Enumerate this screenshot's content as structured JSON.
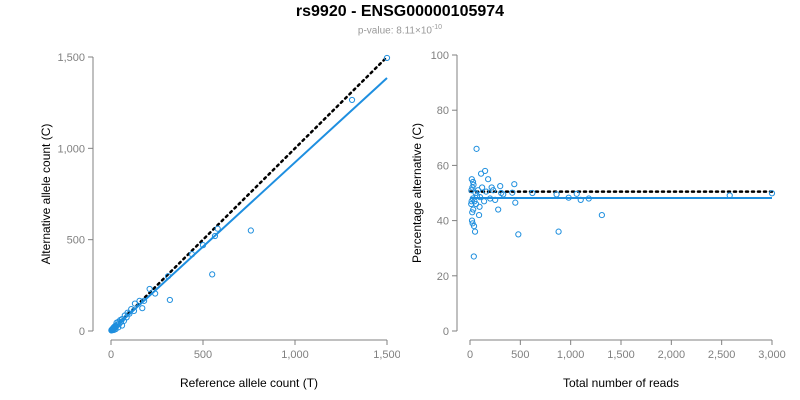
{
  "title": "rs9920 - ENSG00000105974",
  "subtitle": {
    "prefix": "p-value: 8.11×10",
    "exponent": "-10"
  },
  "colors": {
    "points": "#1f8fde",
    "fit_line": "#1e8fe0",
    "reference_line": "#000000",
    "axis": "#808080"
  },
  "chart_data": [
    {
      "type": "scatter",
      "xlabel": "Reference allele count (T)",
      "ylabel": "Alternative allele count (C)",
      "xlim": [
        0,
        1500
      ],
      "ylim": [
        0,
        1500
      ],
      "xticks": [
        0,
        500,
        1000,
        1500
      ],
      "yticks": [
        0,
        500,
        1000,
        1500
      ],
      "xtick_labels": [
        "0",
        "500",
        "1,000",
        "1,500"
      ],
      "ytick_labels": [
        "0",
        "500",
        "1,000",
        "1,500"
      ],
      "points": [
        [
          1500,
          1495
        ],
        [
          1310,
          1265
        ],
        [
          760,
          550
        ],
        [
          580,
          560
        ],
        [
          565,
          520
        ],
        [
          550,
          310
        ],
        [
          500,
          470
        ],
        [
          440,
          420
        ],
        [
          320,
          170
        ],
        [
          310,
          300
        ],
        [
          240,
          205
        ],
        [
          210,
          230
        ],
        [
          180,
          165
        ],
        [
          170,
          125
        ],
        [
          155,
          165
        ],
        [
          130,
          150
        ],
        [
          125,
          110
        ],
        [
          110,
          120
        ],
        [
          100,
          95
        ],
        [
          90,
          100
        ],
        [
          85,
          75
        ],
        [
          75,
          85
        ],
        [
          70,
          55
        ],
        [
          60,
          65
        ],
        [
          55,
          50
        ],
        [
          50,
          60
        ],
        [
          45,
          40
        ],
        [
          40,
          50
        ],
        [
          35,
          35
        ],
        [
          30,
          45
        ],
        [
          28,
          25
        ],
        [
          25,
          30
        ],
        [
          22,
          20
        ],
        [
          20,
          25
        ],
        [
          18,
          15
        ],
        [
          15,
          20
        ],
        [
          12,
          12
        ],
        [
          10,
          14
        ],
        [
          8,
          10
        ],
        [
          6,
          8
        ],
        [
          5,
          5
        ],
        [
          4,
          7
        ],
        [
          3,
          3
        ],
        [
          2,
          4
        ],
        [
          25,
          10
        ],
        [
          40,
          20
        ],
        [
          60,
          30
        ],
        [
          15,
          5
        ]
      ],
      "reference_line": [
        [
          0,
          0
        ],
        [
          1500,
          1500
        ]
      ],
      "fit_line": [
        [
          0,
          0
        ],
        [
          1500,
          1385
        ]
      ]
    },
    {
      "type": "scatter",
      "xlabel": "Total number of reads",
      "ylabel": "Percentage alternative (C)",
      "xlim": [
        0,
        3000
      ],
      "ylim": [
        0,
        100
      ],
      "xticks": [
        0,
        500,
        1000,
        1500,
        2000,
        2500,
        3000
      ],
      "yticks": [
        0,
        20,
        40,
        60,
        80,
        100
      ],
      "xtick_labels": [
        "0",
        "500",
        "1,000",
        "1,500",
        "2,000",
        "2,500",
        "3,000"
      ],
      "ytick_labels": [
        "0",
        "20",
        "40",
        "60",
        "80",
        "100"
      ],
      "points": [
        [
          3000,
          49.9
        ],
        [
          2580,
          49.1
        ],
        [
          1310,
          42
        ],
        [
          1180,
          48
        ],
        [
          1100,
          47.5
        ],
        [
          1060,
          49.7
        ],
        [
          980,
          48.3
        ],
        [
          880,
          36
        ],
        [
          860,
          49.5
        ],
        [
          620,
          50
        ],
        [
          480,
          35
        ],
        [
          450,
          46.5
        ],
        [
          440,
          53.2
        ],
        [
          420,
          50.1
        ],
        [
          330,
          49.5
        ],
        [
          310,
          50
        ],
        [
          300,
          52.5
        ],
        [
          280,
          44
        ],
        [
          250,
          47.5
        ],
        [
          230,
          51
        ],
        [
          215,
          52
        ],
        [
          200,
          48
        ],
        [
          180,
          55
        ],
        [
          160,
          50.5
        ],
        [
          150,
          58
        ],
        [
          140,
          47
        ],
        [
          120,
          52
        ],
        [
          110,
          57
        ],
        [
          100,
          48.5
        ],
        [
          95,
          45
        ],
        [
          90,
          42
        ],
        [
          80,
          51
        ],
        [
          70,
          49
        ],
        [
          65,
          66
        ],
        [
          60,
          46
        ],
        [
          55,
          50
        ],
        [
          50,
          36
        ],
        [
          45,
          47
        ],
        [
          40,
          38
        ],
        [
          38,
          27
        ],
        [
          35,
          53
        ],
        [
          32,
          44
        ],
        [
          30,
          54
        ],
        [
          28,
          48
        ],
        [
          26,
          39
        ],
        [
          24,
          52
        ],
        [
          22,
          43
        ],
        [
          20,
          40
        ],
        [
          18,
          55
        ],
        [
          16,
          47
        ],
        [
          14,
          51
        ],
        [
          12,
          46
        ]
      ],
      "reference_line": [
        [
          0,
          50.5
        ],
        [
          3000,
          50.5
        ]
      ],
      "fit_line": [
        [
          0,
          48.2
        ],
        [
          3000,
          48.2
        ]
      ]
    }
  ]
}
